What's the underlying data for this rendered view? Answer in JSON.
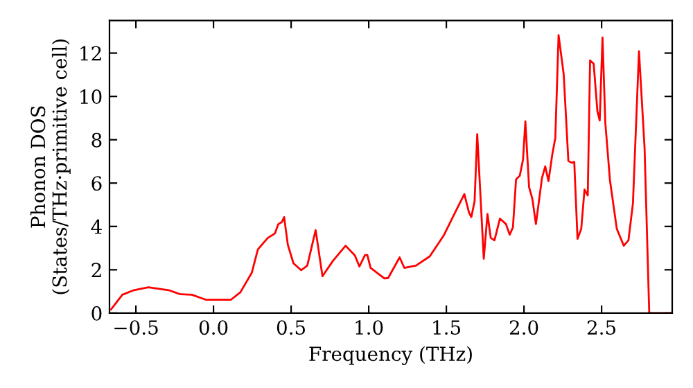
{
  "chart_data": {
    "type": "line",
    "xlabel": "Frequency (THz)",
    "ylabel": "Phonon DOS\n(States/THz·primitive cell)",
    "xlim": [
      -0.67,
      2.955
    ],
    "ylim": [
      0,
      13.5
    ],
    "xticks": [
      {
        "value": -0.5,
        "label": "−0.5"
      },
      {
        "value": 0.0,
        "label": "0.0"
      },
      {
        "value": 0.5,
        "label": "0.5"
      },
      {
        "value": 1.0,
        "label": "1.0"
      },
      {
        "value": 1.5,
        "label": "1.5"
      },
      {
        "value": 2.0,
        "label": "2.0"
      },
      {
        "value": 2.5,
        "label": "2.5"
      }
    ],
    "yticks": [
      0,
      2,
      4,
      6,
      8,
      10,
      12
    ],
    "grid": false,
    "marker": "none",
    "line_style": "solid",
    "series": [
      {
        "color": "#ff0000",
        "x": [
          -0.66,
          -0.587,
          -0.512,
          -0.42,
          -0.289,
          -0.214,
          -0.14,
          -0.05,
          0.113,
          0.173,
          0.247,
          0.286,
          0.35,
          0.396,
          0.417,
          0.44,
          0.455,
          0.479,
          0.515,
          0.565,
          0.604,
          0.658,
          0.702,
          0.768,
          0.851,
          0.911,
          0.94,
          0.976,
          0.991,
          1.012,
          1.101,
          1.125,
          1.199,
          1.229,
          1.304,
          1.393,
          1.482,
          1.571,
          1.616,
          1.646,
          1.661,
          1.682,
          1.699,
          1.741,
          1.765,
          1.786,
          1.81,
          1.845,
          1.884,
          1.908,
          1.929,
          1.949,
          1.973,
          1.994,
          2.009,
          2.033,
          2.054,
          2.077,
          2.116,
          2.137,
          2.158,
          2.182,
          2.202,
          2.223,
          2.256,
          2.286,
          2.307,
          2.324,
          2.345,
          2.369,
          2.39,
          2.411,
          2.426,
          2.449,
          2.473,
          2.488,
          2.506,
          2.524,
          2.554,
          2.598,
          2.643,
          2.673,
          2.702,
          2.741,
          2.777,
          2.807,
          2.955
        ],
        "values": [
          0.17,
          0.85,
          1.06,
          1.19,
          1.06,
          0.87,
          0.85,
          0.62,
          0.62,
          0.96,
          1.87,
          2.94,
          3.47,
          3.68,
          4.1,
          4.2,
          4.43,
          3.15,
          2.3,
          1.98,
          2.19,
          3.83,
          1.7,
          2.4,
          3.11,
          2.66,
          2.15,
          2.68,
          2.68,
          2.09,
          1.6,
          1.62,
          2.57,
          2.09,
          2.19,
          2.62,
          3.57,
          4.85,
          5.49,
          4.64,
          4.43,
          5.17,
          8.26,
          2.51,
          4.57,
          3.47,
          3.36,
          4.36,
          4.11,
          3.62,
          3.96,
          6.17,
          6.34,
          7.09,
          8.85,
          5.81,
          5.28,
          4.11,
          6.23,
          6.77,
          6.09,
          7.3,
          8.09,
          12.83,
          11.02,
          7.02,
          6.94,
          6.98,
          3.43,
          3.89,
          5.7,
          5.43,
          11.66,
          11.51,
          9.32,
          8.89,
          12.72,
          8.79,
          6.13,
          3.89,
          3.11,
          3.36,
          5.06,
          12.09,
          7.62,
          0,
          0
        ]
      }
    ]
  }
}
